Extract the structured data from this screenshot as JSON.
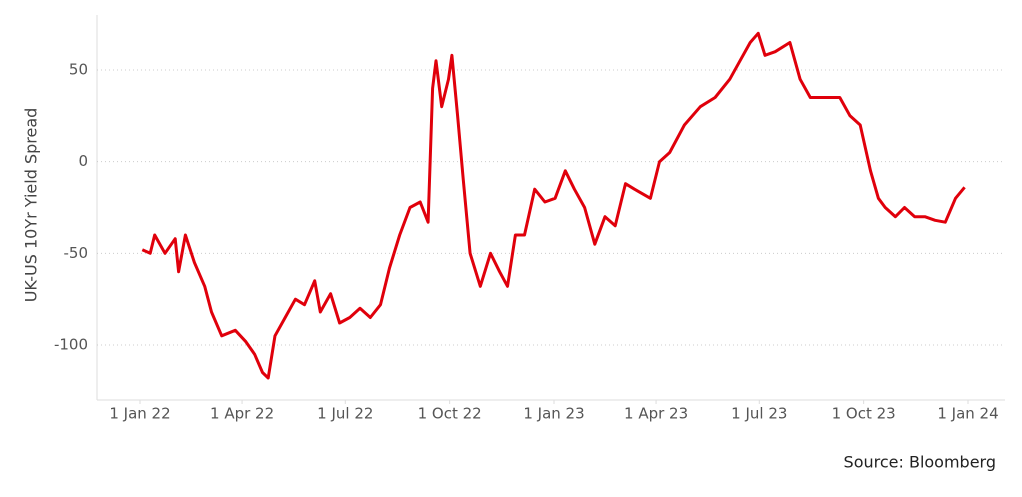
{
  "chart_data": {
    "type": "line",
    "y_label": "UK-US 10Yr Yield Spread",
    "source": "Source: Bloomberg",
    "x": [
      "2022-01-03",
      "2022-01-10",
      "2022-01-14",
      "2022-01-23",
      "2022-02-01",
      "2022-02-04",
      "2022-02-10",
      "2022-02-18",
      "2022-02-27",
      "2022-03-05",
      "2022-03-14",
      "2022-03-26",
      "2022-04-04",
      "2022-04-12",
      "2022-04-19",
      "2022-04-24",
      "2022-04-30",
      "2022-05-09",
      "2022-05-18",
      "2022-05-26",
      "2022-06-04",
      "2022-06-09",
      "2022-06-18",
      "2022-06-26",
      "2022-07-05",
      "2022-07-14",
      "2022-07-23",
      "2022-08-01",
      "2022-08-09",
      "2022-08-18",
      "2022-08-27",
      "2022-09-05",
      "2022-09-12",
      "2022-09-16",
      "2022-09-19",
      "2022-09-24",
      "2022-09-30",
      "2022-10-03",
      "2022-10-08",
      "2022-10-13",
      "2022-10-19",
      "2022-10-28",
      "2022-11-06",
      "2022-11-14",
      "2022-11-21",
      "2022-11-28",
      "2022-12-06",
      "2022-12-15",
      "2022-12-24",
      "2023-01-02",
      "2023-01-11",
      "2023-01-19",
      "2023-01-28",
      "2023-02-06",
      "2023-02-15",
      "2023-02-24",
      "2023-03-05",
      "2023-03-13",
      "2023-03-27",
      "2023-04-04",
      "2023-04-13",
      "2023-04-26",
      "2023-05-10",
      "2023-05-23",
      "2023-06-05",
      "2023-06-14",
      "2023-06-23",
      "2023-06-30",
      "2023-07-06",
      "2023-07-15",
      "2023-07-28",
      "2023-08-06",
      "2023-08-15",
      "2023-08-28",
      "2023-09-10",
      "2023-09-19",
      "2023-09-28",
      "2023-10-07",
      "2023-10-14",
      "2023-10-20",
      "2023-10-29",
      "2023-11-06",
      "2023-11-15",
      "2023-11-24",
      "2023-12-03",
      "2023-12-12",
      "2023-12-21",
      "2023-12-29"
    ],
    "series": [
      {
        "name": "UK-US 10Yr Yield Spread",
        "color": "#e0000b",
        "values": [
          -48,
          -50,
          -40,
          -50,
          -42,
          -60,
          -40,
          -55,
          -68,
          -82,
          -95,
          -92,
          -98,
          -105,
          -115,
          -118,
          -95,
          -85,
          -75,
          -78,
          -65,
          -82,
          -72,
          -88,
          -85,
          -80,
          -85,
          -78,
          -58,
          -40,
          -25,
          -22,
          -33,
          40,
          55,
          30,
          45,
          58,
          25,
          -10,
          -50,
          -68,
          -50,
          -60,
          -68,
          -40,
          -40,
          -15,
          -22,
          -20,
          -5,
          -15,
          -25,
          -45,
          -30,
          -35,
          -12,
          -15,
          -20,
          0,
          5,
          20,
          30,
          35,
          45,
          55,
          65,
          70,
          58,
          60,
          65,
          45,
          35,
          35,
          35,
          25,
          20,
          -5,
          -20,
          -25,
          -30,
          -25,
          -30,
          -30,
          -32,
          -33,
          -20,
          -14
        ]
      }
    ],
    "xlim": [
      "2022-01-01",
      "2024-01-01"
    ],
    "xticks": [
      {
        "value": "2022-01-01",
        "label": "1 Jan 22"
      },
      {
        "value": "2022-04-01",
        "label": "1 Apr 22"
      },
      {
        "value": "2022-07-01",
        "label": "1 Jul 22"
      },
      {
        "value": "2022-10-01",
        "label": "1 Oct 22"
      },
      {
        "value": "2023-01-01",
        "label": "1 Jan 23"
      },
      {
        "value": "2023-04-01",
        "label": "1 Apr 23"
      },
      {
        "value": "2023-07-01",
        "label": "1 Jul 23"
      },
      {
        "value": "2023-10-01",
        "label": "1 Oct 23"
      },
      {
        "value": "2024-01-01",
        "label": "1 Jan 24"
      }
    ],
    "ylim": [
      -130,
      80
    ],
    "yticks": [
      -100,
      -50,
      0,
      50
    ],
    "grid": true
  }
}
